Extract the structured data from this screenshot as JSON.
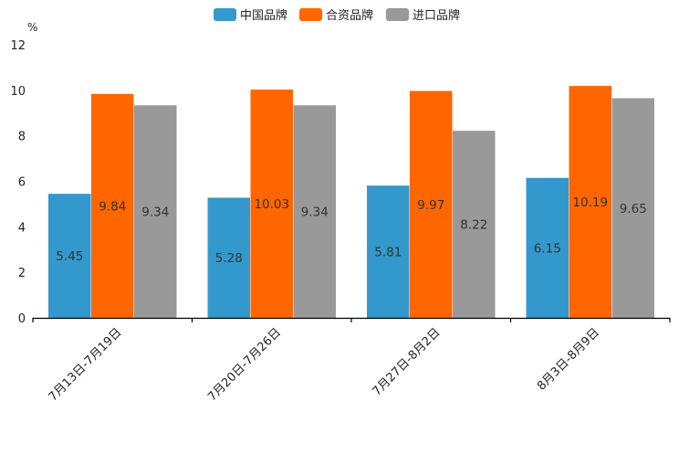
{
  "chart_data": {
    "type": "bar",
    "title": "",
    "xlabel": "",
    "ylabel": "",
    "y_unit": "%",
    "ylim": [
      0,
      12
    ],
    "yticks": [
      0,
      2,
      4,
      6,
      8,
      10,
      12
    ],
    "grid": false,
    "legend_position": "top-center",
    "categories": [
      "7月13日-7月19日",
      "7月20日-7月26日",
      "7月27日-8月2日",
      "8月3日-8月9日"
    ],
    "series": [
      {
        "name": "中国品牌",
        "color": "#3399cc",
        "values": [
          5.45,
          5.28,
          5.81,
          6.15
        ]
      },
      {
        "name": "合资品牌",
        "color": "#ff6600",
        "values": [
          9.84,
          10.03,
          9.97,
          10.19
        ]
      },
      {
        "name": "进口品牌",
        "color": "#999999",
        "values": [
          9.34,
          9.34,
          8.22,
          9.65
        ]
      }
    ]
  }
}
